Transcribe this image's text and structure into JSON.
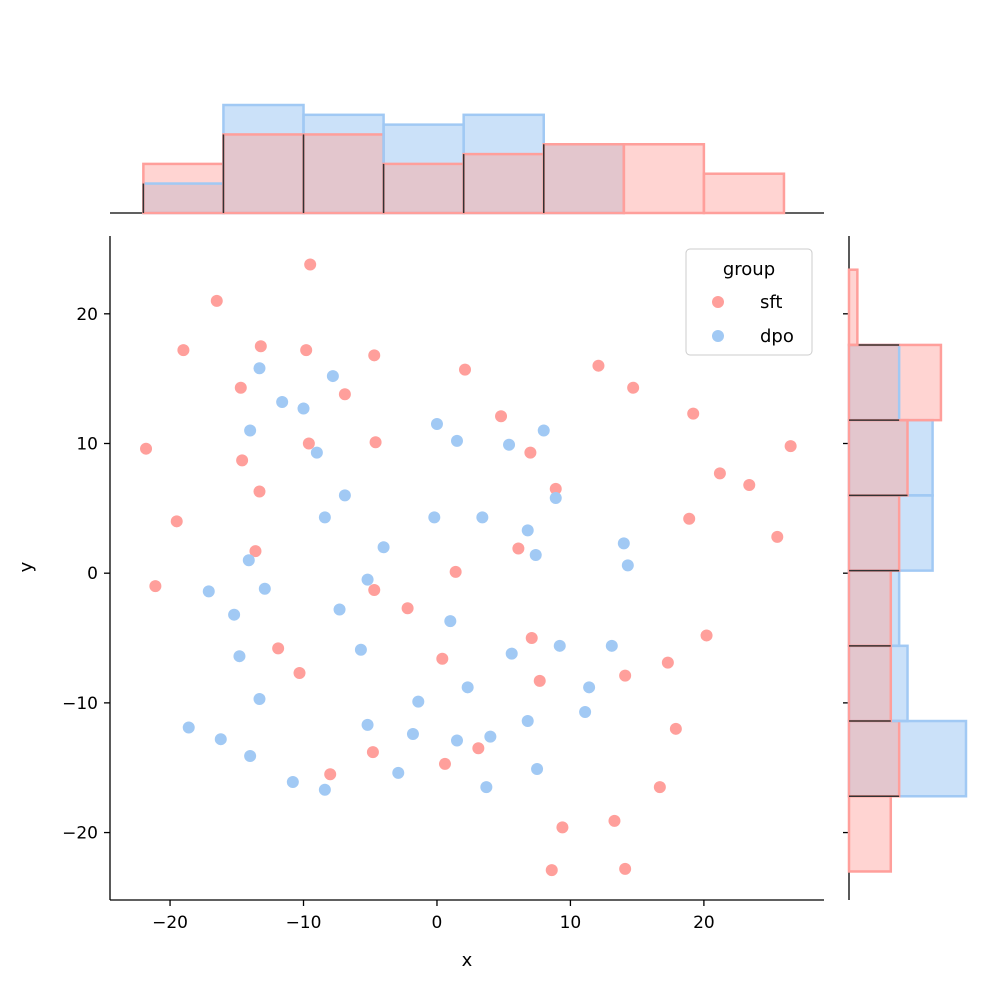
{
  "chart_data": {
    "type": "scatter",
    "title": "",
    "xlabel": "x",
    "ylabel": "y",
    "xlim": [
      -24.5,
      29
    ],
    "ylim": [
      -25.2,
      26
    ],
    "xticks": [
      -20,
      -10,
      0,
      10,
      20
    ],
    "yticks": [
      -20,
      -10,
      0,
      10,
      20
    ],
    "grid": false,
    "legend": {
      "title": "group",
      "placement": "top-right"
    },
    "colors": {
      "sft": "#ff9f9b",
      "dpo": "#a1c9f4",
      "overlap": "#e3c6cd",
      "outline": "#333333"
    },
    "series": [
      {
        "name": "sft",
        "color": "#ff9f9b",
        "points": [
          [
            -9.5,
            23.8
          ],
          [
            -16.5,
            21.0
          ],
          [
            -19.0,
            17.2
          ],
          [
            -13.2,
            17.5
          ],
          [
            -9.8,
            17.2
          ],
          [
            -4.7,
            16.8
          ],
          [
            2.1,
            15.7
          ],
          [
            12.1,
            16.0
          ],
          [
            14.7,
            14.3
          ],
          [
            -14.7,
            14.3
          ],
          [
            -6.9,
            13.8
          ],
          [
            4.8,
            12.1
          ],
          [
            19.2,
            12.3
          ],
          [
            -21.8,
            9.6
          ],
          [
            -9.6,
            10.0
          ],
          [
            -4.6,
            10.1
          ],
          [
            7.0,
            9.3
          ],
          [
            -14.6,
            8.7
          ],
          [
            21.2,
            7.7
          ],
          [
            23.4,
            6.8
          ],
          [
            8.9,
            6.5
          ],
          [
            -13.3,
            6.3
          ],
          [
            18.9,
            4.2
          ],
          [
            -19.5,
            4.0
          ],
          [
            25.5,
            2.8
          ],
          [
            6.1,
            1.9
          ],
          [
            -13.6,
            1.7
          ],
          [
            26.5,
            9.8
          ],
          [
            1.4,
            0.1
          ],
          [
            -21.1,
            -1.0
          ],
          [
            -4.7,
            -1.3
          ],
          [
            -2.2,
            -2.7
          ],
          [
            7.1,
            -5.0
          ],
          [
            20.2,
            -4.8
          ],
          [
            -11.9,
            -5.8
          ],
          [
            0.4,
            -6.6
          ],
          [
            17.3,
            -6.9
          ],
          [
            -10.3,
            -7.7
          ],
          [
            14.1,
            -7.9
          ],
          [
            7.7,
            -8.3
          ],
          [
            17.9,
            -12.0
          ],
          [
            -4.8,
            -13.8
          ],
          [
            3.1,
            -13.5
          ],
          [
            0.6,
            -14.7
          ],
          [
            -8.0,
            -15.5
          ],
          [
            16.7,
            -16.5
          ],
          [
            13.3,
            -19.1
          ],
          [
            9.4,
            -19.6
          ],
          [
            8.6,
            -22.9
          ],
          [
            14.1,
            -22.8
          ]
        ]
      },
      {
        "name": "dpo",
        "color": "#a1c9f4",
        "points": [
          [
            -13.3,
            15.8
          ],
          [
            -7.8,
            15.2
          ],
          [
            -11.6,
            13.2
          ],
          [
            -10.0,
            12.7
          ],
          [
            -14.0,
            11.0
          ],
          [
            0.0,
            11.5
          ],
          [
            1.5,
            10.2
          ],
          [
            5.4,
            9.9
          ],
          [
            8.0,
            11.0
          ],
          [
            -9.0,
            9.3
          ],
          [
            -6.9,
            6.0
          ],
          [
            8.9,
            5.8
          ],
          [
            -8.4,
            4.3
          ],
          [
            -0.2,
            4.3
          ],
          [
            3.4,
            4.3
          ],
          [
            6.8,
            3.3
          ],
          [
            -4.0,
            2.0
          ],
          [
            14.0,
            2.3
          ],
          [
            7.4,
            1.4
          ],
          [
            -14.1,
            1.0
          ],
          [
            14.3,
            0.6
          ],
          [
            -5.2,
            -0.5
          ],
          [
            -17.1,
            -1.4
          ],
          [
            -12.9,
            -1.2
          ],
          [
            -15.2,
            -3.2
          ],
          [
            -7.3,
            -2.8
          ],
          [
            1.0,
            -3.7
          ],
          [
            9.2,
            -5.6
          ],
          [
            13.1,
            -5.6
          ],
          [
            -5.7,
            -5.9
          ],
          [
            5.6,
            -6.2
          ],
          [
            -14.8,
            -6.4
          ],
          [
            2.3,
            -8.8
          ],
          [
            11.4,
            -8.8
          ],
          [
            -13.3,
            -9.7
          ],
          [
            -1.4,
            -9.9
          ],
          [
            11.1,
            -10.7
          ],
          [
            6.8,
            -11.4
          ],
          [
            -5.2,
            -11.7
          ],
          [
            -18.6,
            -11.9
          ],
          [
            -1.8,
            -12.4
          ],
          [
            4.0,
            -12.6
          ],
          [
            1.5,
            -12.9
          ],
          [
            -16.2,
            -12.8
          ],
          [
            -14.0,
            -14.1
          ],
          [
            7.5,
            -15.1
          ],
          [
            -2.9,
            -15.4
          ],
          [
            -10.8,
            -16.1
          ],
          [
            3.7,
            -16.5
          ],
          [
            -8.4,
            -16.7
          ]
        ]
      }
    ],
    "marginal_x": {
      "bin_edges": [
        -22,
        -16,
        -10,
        -4,
        2,
        8,
        14,
        20,
        26
      ],
      "sft_counts": [
        5,
        8,
        8,
        5,
        6,
        7,
        7,
        4
      ],
      "dpo_counts": [
        3,
        11,
        10,
        9,
        10,
        7,
        0,
        0
      ]
    },
    "marginal_y": {
      "bin_edges": [
        -23,
        -17.2,
        -11.4,
        -5.6,
        0.2,
        6.0,
        11.8,
        17.6,
        23.4
      ],
      "sft_counts": [
        5,
        6,
        5,
        5,
        6,
        7,
        11,
        1
      ],
      "dpo_counts": [
        0,
        14,
        7,
        6,
        10,
        10,
        6,
        0
      ]
    }
  }
}
